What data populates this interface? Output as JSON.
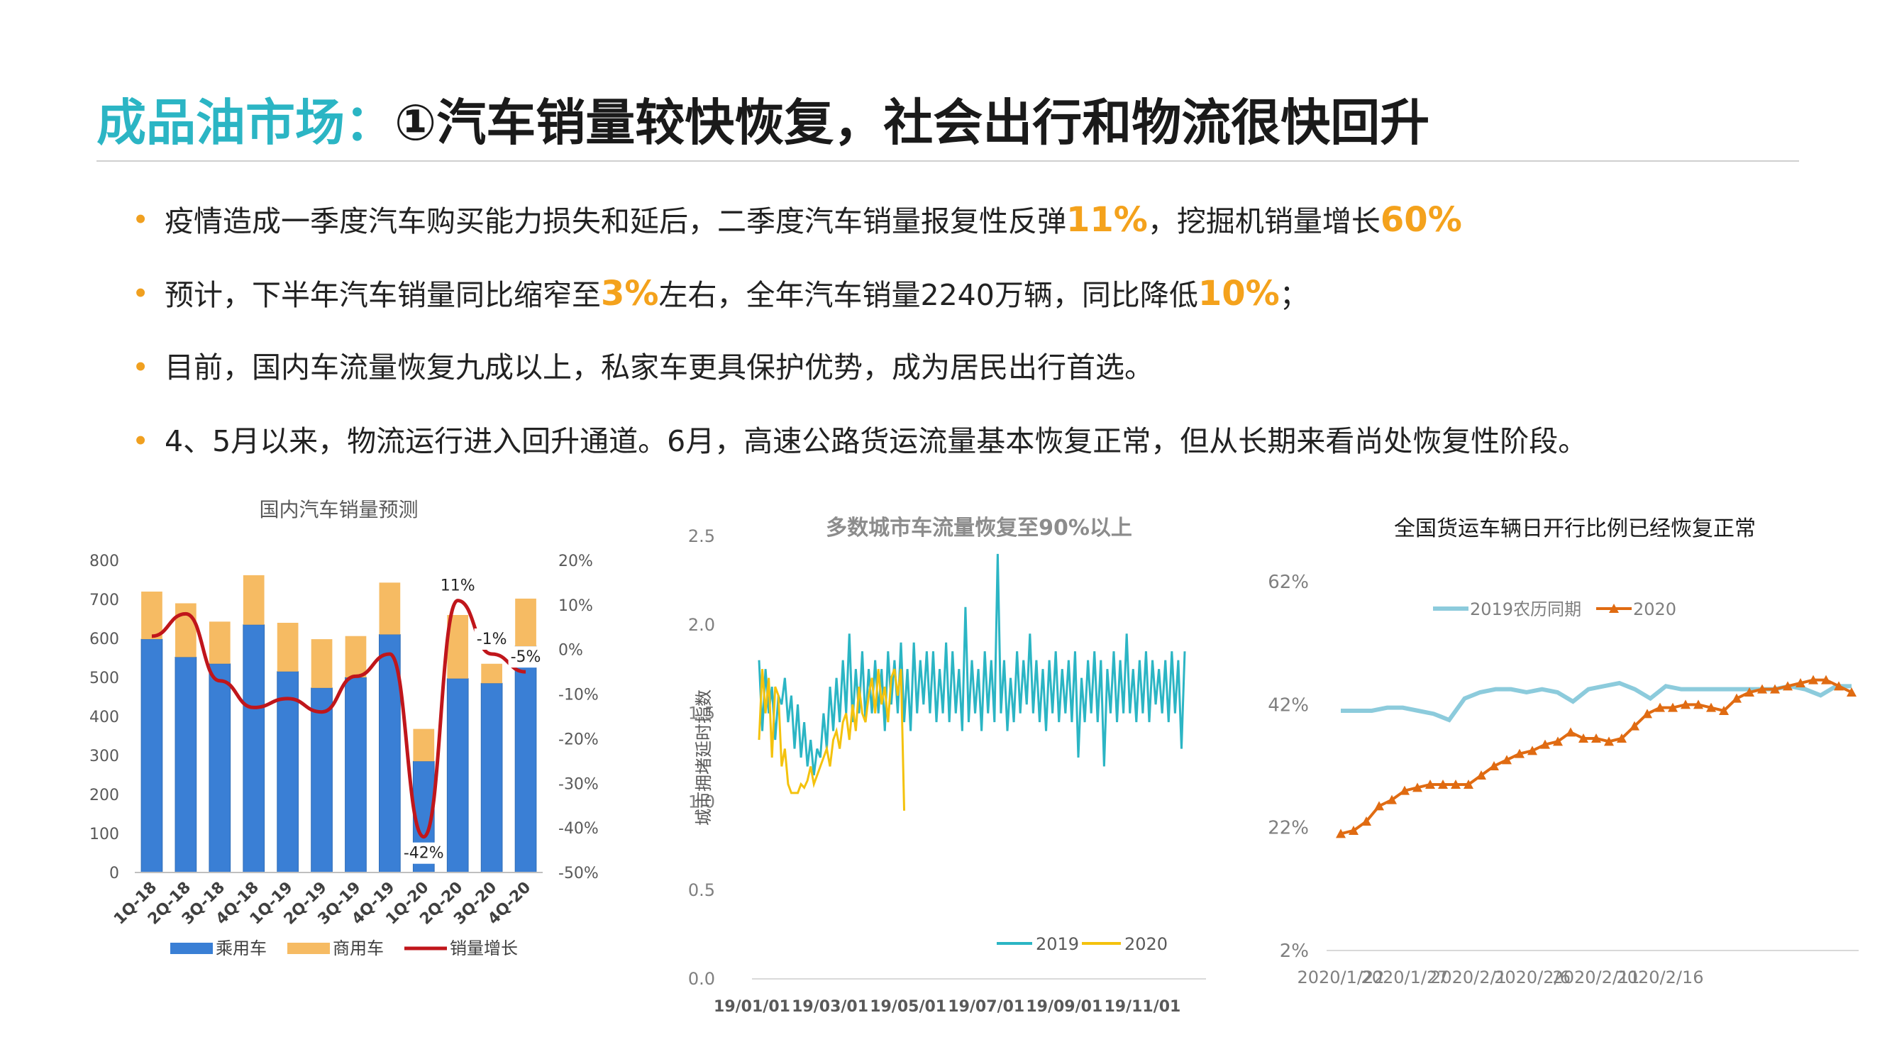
{
  "title": {
    "prefix": "成品油市场：",
    "main": "①汽车销量较快恢复，社会出行和物流很快回升"
  },
  "bullets": [
    {
      "parts": [
        {
          "text": "疫情造成一季度汽车购买能力损失和延后，二季度汽车销量报复性反弹"
        },
        {
          "text": "11%",
          "hl": true
        },
        {
          "text": "，挖掘机销量增长"
        },
        {
          "text": "60%",
          "hl": true
        }
      ]
    },
    {
      "parts": [
        {
          "text": "预计，下半年汽车销量同比缩窄至"
        },
        {
          "text": "3%",
          "hl": true
        },
        {
          "text": "左右，全年汽车销量2240万辆，同比降低"
        },
        {
          "text": "10%",
          "hl": true
        },
        {
          "text": "；"
        }
      ]
    },
    {
      "parts": [
        {
          "text": "目前，国内车流量恢复九成以上，私家车更具保护优势，成为居民出行首选。"
        }
      ]
    },
    {
      "parts": [
        {
          "text": "4、5月以来，物流运行进入回升通道。6月，高速公路货运流量基本恢复正常，但从长期来看尚处恢复性阶段。"
        }
      ]
    }
  ],
  "colors": {
    "accent": "#2bb5c4",
    "highlight": "#f4a21c",
    "passenger": "#3a7fd5",
    "commercial": "#f6bb63",
    "growth": "#c0161b",
    "series2019": "#2bb5c4",
    "series2020": "#f4c20d",
    "freight2019": "#8ccbdc",
    "freight2020": "#e06b12"
  },
  "chart_data": [
    {
      "type": "bar",
      "title": "国内汽车销量预测",
      "categories": [
        "1Q-18",
        "2Q-18",
        "3Q-18",
        "4Q-18",
        "1Q-19",
        "2Q-19",
        "3Q-19",
        "4Q-19",
        "1Q-20",
        "2Q-20",
        "3Q-20",
        "4Q-20"
      ],
      "series": [
        {
          "name": "乘用车",
          "kind": "bar",
          "values": [
            598,
            552,
            535,
            635,
            515,
            473,
            500,
            610,
            285,
            497,
            485,
            580
          ]
        },
        {
          "name": "商用车",
          "kind": "bar",
          "values": [
            122,
            138,
            108,
            127,
            125,
            125,
            106,
            133,
            83,
            163,
            50,
            122
          ]
        },
        {
          "name": "销量增长",
          "kind": "line",
          "axis": "right",
          "values": [
            3,
            8,
            -7,
            -13,
            -11,
            -14,
            -6,
            -1,
            -42,
            11,
            -1,
            -5
          ]
        }
      ],
      "data_labels": [
        {
          "index": 8,
          "text": "-42%"
        },
        {
          "index": 9,
          "text": "11%"
        },
        {
          "index": 10,
          "text": "-1%"
        },
        {
          "index": 11,
          "text": "-5%"
        }
      ],
      "ylim": [
        0,
        800
      ],
      "yticks": [
        "0",
        "100",
        "200",
        "300",
        "400",
        "500",
        "600",
        "700",
        "800"
      ],
      "y2lim": [
        -50,
        20
      ],
      "y2ticks": [
        "-50%",
        "-40%",
        "-30%",
        "-20%",
        "-10%",
        "0%",
        "10%",
        "20%"
      ],
      "legend": "bottom"
    },
    {
      "type": "line",
      "title": "多数城市车流量恢复至90%以上",
      "ylabel": "城市拥堵延时指数",
      "ylim": [
        0,
        2.5
      ],
      "yticks": [
        "0.0",
        "0.5",
        "1.0",
        "1.5",
        "2.0",
        "2.5"
      ],
      "xticks": [
        "19/01/01",
        "19/03/01",
        "19/05/01",
        "19/07/01",
        "19/09/01",
        "19/11/01"
      ],
      "series": [
        {
          "name": "2019",
          "values": [
            1.8,
            1.4,
            1.75,
            1.5,
            1.65,
            1.35,
            1.6,
            1.55,
            1.7,
            1.45,
            1.6,
            1.3,
            1.55,
            1.25,
            1.45,
            1.2,
            1.35,
            1.15,
            1.3,
            1.25,
            1.5,
            1.3,
            1.65,
            1.4,
            1.7,
            1.45,
            1.8,
            1.5,
            1.95,
            1.45,
            1.75,
            1.5,
            1.85,
            1.45,
            1.75,
            1.5,
            1.8,
            1.5,
            1.75,
            1.4,
            1.85,
            1.55,
            1.8,
            1.5,
            1.9,
            1.45,
            1.75,
            1.4,
            1.9,
            1.5,
            1.8,
            1.55,
            1.85,
            1.5,
            1.85,
            1.45,
            1.75,
            1.5,
            1.9,
            1.45,
            1.85,
            1.5,
            1.75,
            1.4,
            2.1,
            1.45,
            1.8,
            1.5,
            1.75,
            1.4,
            1.85,
            1.5,
            1.8,
            1.45,
            2.4,
            1.5,
            1.8,
            1.4,
            1.7,
            1.45,
            1.85,
            1.5,
            1.8,
            1.55,
            1.95,
            1.5,
            1.8,
            1.45,
            1.75,
            1.4,
            1.8,
            1.5,
            1.85,
            1.45,
            1.75,
            1.5,
            1.8,
            1.45,
            1.85,
            1.25,
            1.7,
            1.45,
            1.8,
            1.5,
            1.85,
            1.45,
            1.8,
            1.2,
            1.75,
            1.5,
            1.85,
            1.45,
            1.8,
            1.5,
            1.95,
            1.5,
            1.75,
            1.45,
            1.8,
            1.5,
            1.85,
            1.45,
            1.8,
            1.55,
            1.75,
            1.5,
            1.8,
            1.45,
            1.85,
            1.5,
            1.8,
            1.3,
            1.85
          ]
        },
        {
          "name": "2020",
          "values": [
            1.35,
            1.75,
            1.5,
            1.7,
            1.25,
            1.65,
            1.6,
            1.2,
            1.3,
            1.1,
            1.05,
            1.05,
            1.05,
            1.1,
            1.08,
            1.12,
            1.2,
            1.1,
            1.15,
            1.2,
            1.25,
            1.3,
            1.2,
            1.35,
            1.4,
            1.3,
            1.45,
            1.5,
            1.35,
            1.55,
            1.4,
            1.65,
            1.5,
            1.45,
            1.6,
            1.7,
            1.5,
            1.75,
            1.55,
            1.65,
            1.45,
            1.7,
            1.75,
            1.6,
            1.75,
            0.95
          ]
        }
      ],
      "legend": "bottom-right"
    },
    {
      "type": "line",
      "title": "全国货运车辆日开行比例已经恢复正常",
      "ylim": [
        2,
        62
      ],
      "yticks": [
        "2%",
        "22%",
        "42%",
        "62%"
      ],
      "xticks": [
        "2020/1/22",
        "2020/1/27",
        "2020/2/1",
        "2020/2/6",
        "2020/2/11",
        "2020/2/16"
      ],
      "series": [
        {
          "name": "2019农历同期",
          "values": [
            41,
            41,
            41,
            41.5,
            41.5,
            41,
            40.5,
            39.5,
            43,
            44,
            44.5,
            44.5,
            44,
            44.5,
            44,
            42.5,
            44.5,
            45,
            45.5,
            44.5,
            43,
            45,
            44.5,
            44.5,
            44.5,
            44.5,
            44.5,
            44.5,
            44.5,
            45,
            44.5,
            43.5,
            45,
            45
          ]
        },
        {
          "name": "2020",
          "values": [
            21,
            21.5,
            23,
            25.5,
            26.5,
            28,
            28.5,
            29,
            29,
            29,
            29,
            30.5,
            32,
            33,
            34,
            34.5,
            35.5,
            36,
            37.5,
            36.5,
            36.5,
            36,
            36.5,
            38.5,
            40.5,
            41.5,
            41.5,
            42,
            42,
            41.5,
            41,
            43,
            44,
            44.5,
            44.5,
            45,
            45.5,
            46,
            46,
            45,
            44
          ]
        }
      ],
      "legend": "top"
    }
  ]
}
